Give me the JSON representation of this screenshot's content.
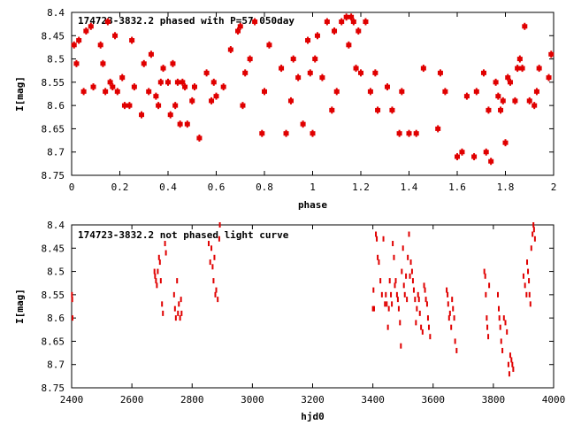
{
  "chart_data": [
    {
      "type": "scatter",
      "title": "174723-3832.2 phased with P=57.050day",
      "xlabel": "phase",
      "ylabel": "I[mag]",
      "xlim": [
        0,
        2
      ],
      "ylim": [
        8.75,
        8.4
      ],
      "y_inverted": true,
      "x_ticks": [
        "0",
        "0.2",
        "0.4",
        "0.6",
        "0.8",
        "1",
        "1.2",
        "1.4",
        "1.6",
        "1.8",
        "2"
      ],
      "y_ticks": [
        "8.4",
        "8.45",
        "8.5",
        "8.55",
        "8.6",
        "8.65",
        "8.7",
        "8.75"
      ],
      "grid": false,
      "marker_color": "#e00000",
      "series": [
        {
          "x": [
            0.01,
            0.02,
            0.03,
            0.05,
            0.06,
            0.08,
            0.09,
            0.12,
            0.13,
            0.14,
            0.15,
            0.16,
            0.17,
            0.18,
            0.19,
            0.21,
            0.22,
            0.24,
            0.25,
            0.26,
            0.29,
            0.3,
            0.32,
            0.33,
            0.35,
            0.36,
            0.37,
            0.38,
            0.4,
            0.41,
            0.42,
            0.43,
            0.44,
            0.45,
            0.46,
            0.47,
            0.48,
            0.5,
            0.51,
            0.53,
            0.56,
            0.58,
            0.59,
            0.6,
            0.63,
            0.66,
            0.69,
            0.7,
            0.71,
            0.72,
            0.74,
            0.76,
            0.79,
            0.8,
            0.82,
            0.87,
            0.89,
            0.91,
            0.92,
            0.94,
            0.96,
            0.98,
            0.99,
            1.0,
            1.01,
            1.02,
            1.04,
            1.06,
            1.08,
            1.09,
            1.1,
            1.12,
            1.14,
            1.15,
            1.16,
            1.17,
            1.18,
            1.19,
            1.2,
            1.22,
            1.24,
            1.26,
            1.27,
            1.31,
            1.33,
            1.36,
            1.37,
            1.4,
            1.43,
            1.46,
            1.52,
            1.53,
            1.55,
            1.6,
            1.62,
            1.64,
            1.67,
            1.68,
            1.71,
            1.72,
            1.73,
            1.74,
            1.76,
            1.77,
            1.78,
            1.79,
            1.8,
            1.81,
            1.82,
            1.84,
            1.85,
            1.86,
            1.87,
            1.88,
            1.9,
            1.92,
            1.93,
            1.94,
            1.98,
            1.99
          ],
          "y": [
            8.47,
            8.51,
            8.46,
            8.57,
            8.44,
            8.43,
            8.56,
            8.47,
            8.51,
            8.57,
            8.42,
            8.55,
            8.56,
            8.45,
            8.57,
            8.54,
            8.6,
            8.6,
            8.46,
            8.56,
            8.62,
            8.51,
            8.57,
            8.49,
            8.58,
            8.6,
            8.55,
            8.52,
            8.55,
            8.62,
            8.51,
            8.6,
            8.55,
            8.64,
            8.55,
            8.56,
            8.64,
            8.59,
            8.56,
            8.67,
            8.53,
            8.59,
            8.55,
            8.58,
            8.56,
            8.48,
            8.44,
            8.43,
            8.6,
            8.53,
            8.5,
            8.42,
            8.66,
            8.57,
            8.47,
            8.52,
            8.66,
            8.59,
            8.5,
            8.54,
            8.64,
            8.46,
            8.53,
            8.66,
            8.5,
            8.45,
            8.54,
            8.42,
            8.61,
            8.44,
            8.57,
            8.42,
            8.41,
            8.47,
            8.41,
            8.42,
            8.52,
            8.44,
            8.53,
            8.42,
            8.57,
            8.53,
            8.61,
            8.56,
            8.61,
            8.66,
            8.57,
            8.66,
            8.66,
            8.52,
            8.65,
            8.53,
            8.57,
            8.71,
            8.7,
            8.58,
            8.71,
            8.57,
            8.53,
            8.7,
            8.61,
            8.72,
            8.55,
            8.58,
            8.61,
            8.59,
            8.68,
            8.54,
            8.55,
            8.59,
            8.52,
            8.5,
            8.52,
            8.43,
            8.59,
            8.6,
            8.57,
            8.52,
            8.54,
            8.49
          ],
          "error_bars": true
        }
      ]
    },
    {
      "type": "scatter",
      "title": "174723-3832.2 not phased light curve",
      "xlabel": "hjd0",
      "ylabel": "I[mag]",
      "xlim": [
        2400,
        4000
      ],
      "ylim": [
        8.75,
        8.4
      ],
      "y_inverted": true,
      "x_ticks": [
        "2400",
        "2600",
        "2800",
        "3000",
        "3200",
        "3400",
        "3600",
        "3800",
        "4000"
      ],
      "y_ticks": [
        "8.4",
        "8.45",
        "8.5",
        "8.55",
        "8.6",
        "8.65",
        "8.7",
        "8.75"
      ],
      "grid": false,
      "marker_color": "#e00000",
      "series": [
        {
          "x": [
            2401,
            2402,
            2403,
            2675,
            2677,
            2680,
            2683,
            2686,
            2690,
            2693,
            2696,
            2700,
            2703,
            2710,
            2713,
            2740,
            2743,
            2746,
            2750,
            2753,
            2756,
            2760,
            2763,
            2765,
            2855,
            2860,
            2864,
            2868,
            2871,
            2874,
            2877,
            2880,
            2885,
            2890,
            2892,
            3400,
            3402,
            3404,
            3410,
            3413,
            3416,
            3420,
            3425,
            3430,
            3435,
            3440,
            3443,
            3446,
            3450,
            3453,
            3456,
            3460,
            3463,
            3466,
            3470,
            3473,
            3476,
            3480,
            3483,
            3486,
            3490,
            3493,
            3496,
            3500,
            3503,
            3506,
            3510,
            3513,
            3516,
            3520,
            3523,
            3526,
            3530,
            3533,
            3536,
            3540,
            3543,
            3546,
            3550,
            3553,
            3556,
            3560,
            3565,
            3570,
            3573,
            3576,
            3580,
            3583,
            3586,
            3590,
            3645,
            3648,
            3650,
            3653,
            3656,
            3660,
            3663,
            3666,
            3670,
            3673,
            3678,
            3770,
            3773,
            3775,
            3778,
            3780,
            3783,
            3786,
            3815,
            3818,
            3820,
            3823,
            3826,
            3830,
            3835,
            3840,
            3845,
            3850,
            3853,
            3856,
            3860,
            3863,
            3866,
            3900,
            3905,
            3910,
            3912,
            3915,
            3918,
            3920,
            3923,
            3926,
            3930,
            3933,
            3935,
            3938
          ],
          "y": [
            8.55,
            8.56,
            8.6,
            8.5,
            8.51,
            8.52,
            8.53,
            8.5,
            8.47,
            8.48,
            8.52,
            8.57,
            8.59,
            8.44,
            8.46,
            8.55,
            8.58,
            8.6,
            8.52,
            8.59,
            8.57,
            8.6,
            8.56,
            8.59,
            8.44,
            8.48,
            8.45,
            8.49,
            8.52,
            8.47,
            8.55,
            8.54,
            8.56,
            8.43,
            8.4,
            8.58,
            8.54,
            8.58,
            8.42,
            8.43,
            8.47,
            8.48,
            8.52,
            8.55,
            8.43,
            8.57,
            8.55,
            8.57,
            8.62,
            8.58,
            8.52,
            8.55,
            8.57,
            8.44,
            8.47,
            8.53,
            8.52,
            8.55,
            8.56,
            8.58,
            8.61,
            8.66,
            8.5,
            8.45,
            8.53,
            8.55,
            8.51,
            8.56,
            8.47,
            8.42,
            8.51,
            8.48,
            8.5,
            8.52,
            8.54,
            8.56,
            8.61,
            8.58,
            8.55,
            8.56,
            8.59,
            8.62,
            8.63,
            8.53,
            8.54,
            8.56,
            8.57,
            8.6,
            8.62,
            8.64,
            8.54,
            8.55,
            8.57,
            8.6,
            8.59,
            8.62,
            8.56,
            8.58,
            8.6,
            8.65,
            8.67,
            8.5,
            8.51,
            8.55,
            8.6,
            8.62,
            8.64,
            8.53,
            8.55,
            8.58,
            8.6,
            8.62,
            8.65,
            8.67,
            8.6,
            8.61,
            8.63,
            8.7,
            8.72,
            8.68,
            8.69,
            8.7,
            8.71,
            8.51,
            8.53,
            8.55,
            8.48,
            8.5,
            8.52,
            8.55,
            8.57,
            8.45,
            8.42,
            8.4,
            8.41,
            8.43
          ],
          "error_bars": false
        }
      ]
    }
  ]
}
